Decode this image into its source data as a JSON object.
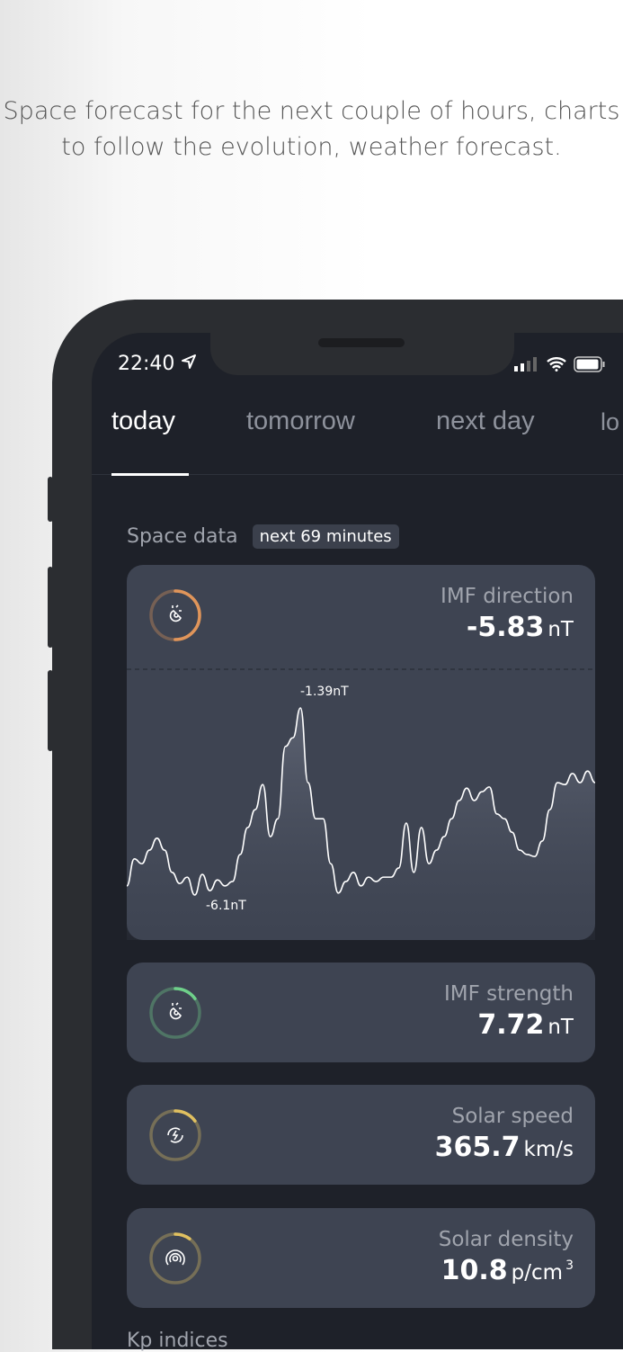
{
  "caption": "Space forecast for the next couple of hours, charts to follow the evolution, weather forecast.",
  "status_bar": {
    "time": "22:40",
    "location_icon": "location-arrow-icon",
    "signal_icon": "cellular-signal-icon",
    "wifi_icon": "wifi-icon",
    "battery_icon": "battery-icon"
  },
  "tabs": [
    {
      "label": "today",
      "active": true
    },
    {
      "label": "tomorrow"
    },
    {
      "label": "next day"
    },
    {
      "label": "lo"
    }
  ],
  "section": {
    "title": "Space data",
    "badge": "next 69 minutes"
  },
  "cards": [
    {
      "label": "IMF direction",
      "value": "-5.83",
      "unit": "nT",
      "icon": "magnet-icon",
      "ring_color": "#e0955a",
      "ring_fraction": 0.5
    },
    {
      "label": "IMF strength",
      "value": "7.72",
      "unit": "nT",
      "icon": "magnet-icon",
      "ring_color": "#6fd08a",
      "ring_fraction": 0.15
    },
    {
      "label": "Solar speed",
      "value": "365.7",
      "unit": "km/s",
      "icon": "solar-wind-icon",
      "ring_color": "#e0c060",
      "ring_fraction": 0.15
    },
    {
      "label": "Solar density",
      "value": "10.8",
      "unit": "p/cm",
      "unit_sup": "3",
      "icon": "density-icon",
      "ring_color": "#e0c060",
      "ring_fraction": 0.1
    }
  ],
  "chart_data": {
    "type": "area",
    "unit": "nT",
    "max_label": "-1.39nT",
    "min_label": "-6.1nT",
    "range": [
      -6.1,
      -1.39
    ],
    "values": [
      -5.87,
      -5.19,
      -5.31,
      -4.97,
      -4.67,
      -4.97,
      -5.53,
      -5.81,
      -5.65,
      -6.1,
      -5.58,
      -5.99,
      -5.72,
      -5.87,
      -5.76,
      -5.08,
      -4.4,
      -3.95,
      -3.32,
      -4.63,
      -4.18,
      -2.36,
      -2.14,
      -1.39,
      -3.27,
      -4.18,
      -4.18,
      -5.31,
      -6.05,
      -5.76,
      -5.53,
      -5.87,
      -5.65,
      -5.76,
      -5.65,
      -5.65,
      -5.42,
      -4.29,
      -5.53,
      -4.4,
      -5.31,
      -4.97,
      -4.63,
      -4.18,
      -3.72,
      -3.41,
      -3.72,
      -3.5,
      -3.38,
      -4.06,
      -4.18,
      -4.52,
      -4.97,
      -5.08,
      -5.13,
      -4.74,
      -3.95,
      -3.27,
      -3.32,
      -3.04,
      -3.27,
      -2.98,
      -3.27
    ]
  },
  "next_section": "Kp indices"
}
